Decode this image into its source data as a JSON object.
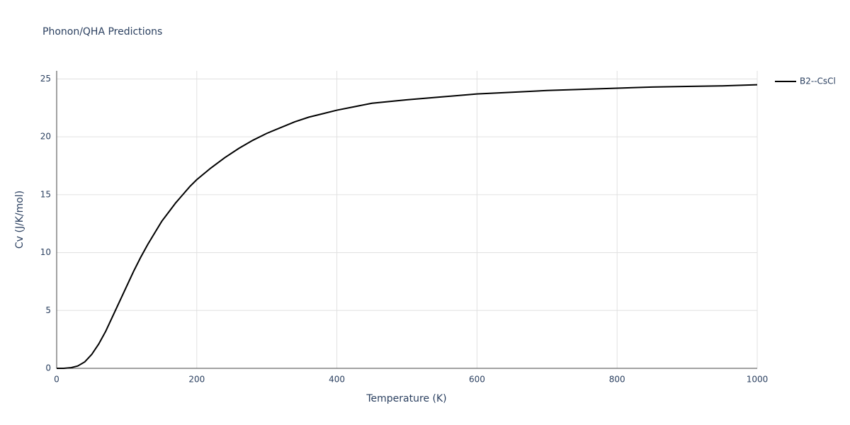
{
  "chart_data": {
    "type": "line",
    "title": "Phonon/QHA Predictions",
    "x_label": "Temperature (K)",
    "y_label": "Cv (J/K/mol)",
    "x": [
      0,
      10,
      20,
      30,
      40,
      50,
      60,
      70,
      80,
      90,
      100,
      110,
      120,
      130,
      140,
      150,
      160,
      170,
      180,
      190,
      200,
      220,
      240,
      260,
      280,
      300,
      320,
      340,
      360,
      380,
      400,
      450,
      500,
      550,
      600,
      650,
      700,
      750,
      800,
      850,
      900,
      950,
      1000
    ],
    "series": [
      {
        "name": "B2--CsCl",
        "color": "#000000",
        "values": [
          0,
          0,
          0.05,
          0.2,
          0.55,
          1.2,
          2.1,
          3.2,
          4.5,
          5.8,
          7.1,
          8.4,
          9.6,
          10.7,
          11.7,
          12.7,
          13.5,
          14.3,
          15.0,
          15.7,
          16.3,
          17.3,
          18.2,
          19.0,
          19.7,
          20.3,
          20.8,
          21.3,
          21.7,
          22.0,
          22.3,
          22.9,
          23.2,
          23.45,
          23.7,
          23.85,
          24.0,
          24.1,
          24.2,
          24.3,
          24.35,
          24.4,
          24.5
        ]
      }
    ],
    "xlim": [
      0,
      1000
    ],
    "xticks": [
      0,
      200,
      400,
      600,
      800,
      1000
    ],
    "ylim": [
      0,
      25.7
    ],
    "yticks": [
      0,
      5,
      10,
      15,
      20,
      25
    ],
    "grid": true,
    "legend": "right"
  }
}
